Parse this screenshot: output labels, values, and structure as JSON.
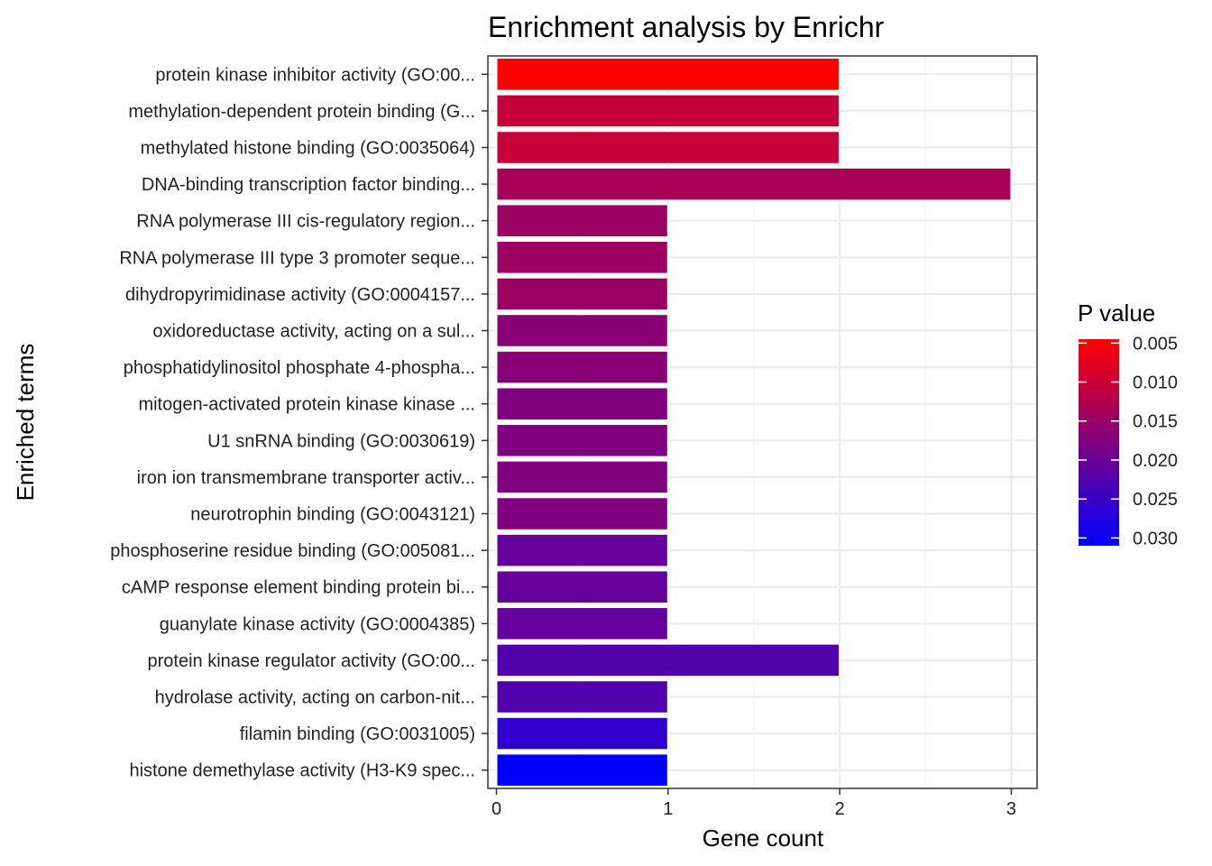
{
  "chart_data": {
    "type": "bar",
    "orientation": "horizontal",
    "title": "Enrichment analysis by Enrichr",
    "xlabel": "Gene count",
    "ylabel": "Enriched terms",
    "xlim": [
      -0.05,
      3.15
    ],
    "xticks": [
      0,
      1,
      2,
      3
    ],
    "grid": true,
    "categories": [
      "protein kinase inhibitor activity (GO:00...",
      "methylation-dependent protein binding (G...",
      "methylated histone binding (GO:0035064)",
      "DNA-binding transcription factor binding...",
      "RNA polymerase III cis-regulatory region...",
      "RNA polymerase III type 3 promoter seque...",
      "dihydropyrimidinase activity (GO:0004157...",
      "oxidoreductase activity, acting on a sul...",
      "phosphatidylinositol phosphate 4-phospha...",
      "mitogen-activated protein kinase kinase ...",
      "U1 snRNA binding (GO:0030619)",
      "iron ion transmembrane transporter activ...",
      "neurotrophin binding (GO:0043121)",
      "phosphoserine residue binding (GO:005081...",
      "cAMP response element binding protein bi...",
      "guanylate kinase activity (GO:0004385)",
      "protein kinase regulator activity (GO:00...",
      "hydrolase activity, acting on carbon-nit...",
      "filamin binding (GO:0031005)",
      "histone demethylase activity (H3-K9 spec..."
    ],
    "values": [
      2,
      2,
      2,
      3,
      1,
      1,
      1,
      1,
      1,
      1,
      1,
      1,
      1,
      1,
      1,
      1,
      2,
      1,
      1,
      1
    ],
    "p_values": [
      0.0045,
      0.0105,
      0.0105,
      0.0135,
      0.0148,
      0.0148,
      0.0148,
      0.0168,
      0.0168,
      0.0178,
      0.0178,
      0.0178,
      0.0178,
      0.0205,
      0.0205,
      0.0205,
      0.0225,
      0.0225,
      0.026,
      0.031
    ],
    "legend": {
      "title": "P value",
      "ticks": [
        "0.005",
        "0.010",
        "0.015",
        "0.020",
        "0.025",
        "0.030"
      ],
      "tick_values": [
        0.005,
        0.01,
        0.015,
        0.02,
        0.025,
        0.03
      ],
      "range": [
        0.0045,
        0.031
      ],
      "low_color": "#ff0000",
      "high_color": "#0000ff",
      "placement": "right"
    },
    "colors": {
      "grid_major": "#ebebeb",
      "grid_minor": "#f3f3f3",
      "panel_border": "#333333",
      "bar_outline": "#ffffff"
    }
  }
}
